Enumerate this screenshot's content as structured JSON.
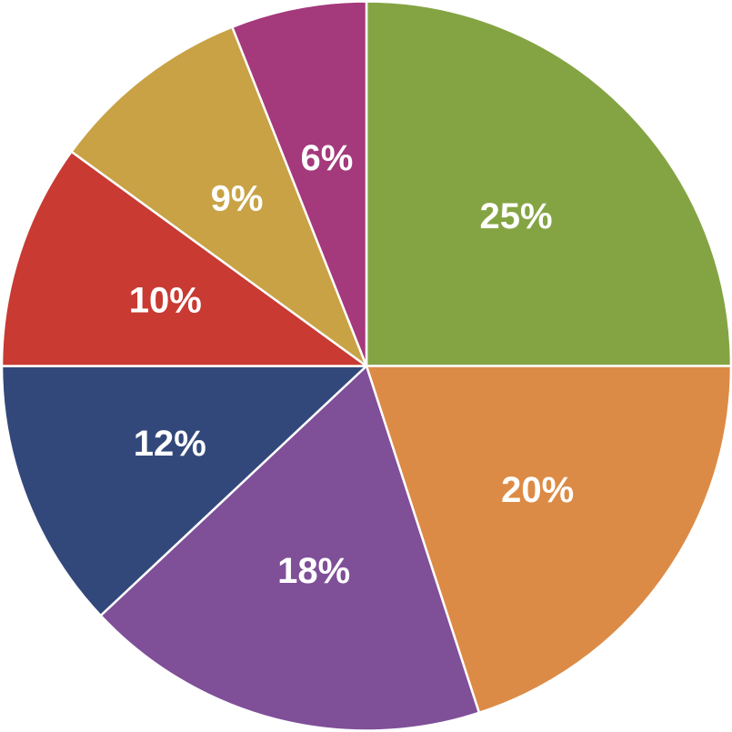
{
  "chart_data": {
    "type": "pie",
    "title": "",
    "start_angle_deg": 0,
    "direction": "clockwise",
    "slices": [
      {
        "value": 25,
        "label": "25%",
        "color": "#84A443"
      },
      {
        "value": 20,
        "label": "20%",
        "color": "#DC8B46"
      },
      {
        "value": 18,
        "label": "18%",
        "color": "#7F4F98"
      },
      {
        "value": 12,
        "label": "12%",
        "color": "#33487A"
      },
      {
        "value": 10,
        "label": "10%",
        "color": "#C83A32"
      },
      {
        "value": 9,
        "label": "9%",
        "color": "#C8A244"
      },
      {
        "value": 6,
        "label": "6%",
        "color": "#A4397C"
      }
    ]
  }
}
